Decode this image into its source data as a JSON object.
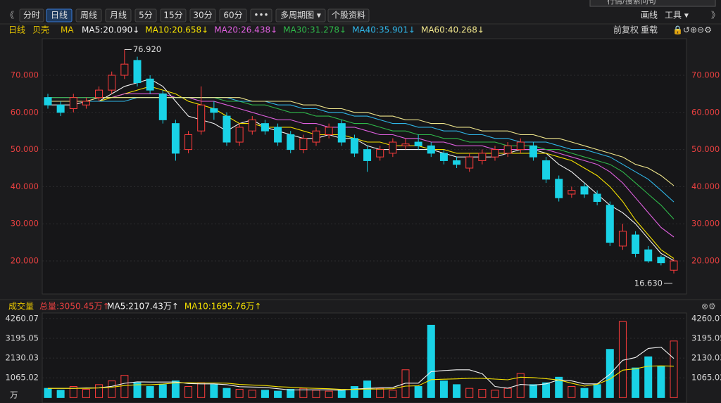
{
  "toolbar": {
    "search": "行情/搜索问句",
    "buttons": [
      "分时",
      "日线",
      "周线",
      "月线",
      "5分",
      "15分",
      "30分",
      "60分",
      "•••",
      "多周期图 ▾",
      "个股资料"
    ],
    "right": [
      "画线",
      "工具 ▾"
    ]
  },
  "chart_data": [
    {
      "type": "candlestick",
      "period": "日线",
      "stock": "贝壳",
      "indicator": "MA",
      "adjust": "前复权",
      "reload": "重载",
      "up_color": "#ff3c3c",
      "down_color": "#19d2e6",
      "open": [
        64,
        62,
        61,
        62,
        64,
        66,
        70,
        74,
        69,
        65,
        57,
        50,
        55,
        61,
        59,
        52,
        55,
        57,
        56,
        54,
        50,
        52,
        54,
        57,
        53,
        50,
        48,
        49,
        51,
        52,
        51,
        49,
        47,
        45,
        47,
        48,
        49,
        50,
        51,
        47,
        42,
        38,
        40,
        38,
        35,
        24,
        27,
        23,
        21,
        17.5
      ],
      "close": [
        62,
        60,
        64,
        63,
        66,
        70,
        73,
        68,
        66,
        58,
        49,
        54,
        62,
        60,
        52,
        56,
        58,
        55,
        52,
        50,
        53,
        55,
        56,
        52,
        49,
        47,
        50,
        52,
        51.5,
        51,
        49,
        47,
        46,
        48,
        49,
        50,
        51,
        52,
        48,
        42,
        37,
        39,
        38,
        36,
        25,
        28,
        22,
        20,
        19.5,
        20
      ],
      "high": [
        65,
        63,
        65,
        64,
        67,
        71,
        76.92,
        75,
        70,
        66,
        58,
        55,
        67,
        63,
        60,
        57,
        59,
        58,
        57,
        55,
        54,
        56,
        57,
        58,
        54,
        51,
        51,
        53,
        53,
        54,
        52,
        50,
        48,
        49,
        50,
        51,
        52,
        53,
        52,
        48,
        43,
        40,
        41,
        39,
        36,
        30,
        28,
        24,
        21.5,
        20.5
      ],
      "low": [
        61,
        59,
        60,
        61,
        63,
        65,
        69,
        67,
        65,
        57,
        47,
        49,
        54,
        58,
        51,
        51,
        54,
        54,
        51,
        49,
        49,
        51,
        53,
        51,
        48,
        44,
        47,
        48,
        50,
        50,
        48,
        46,
        45,
        44,
        46,
        47,
        48,
        49,
        47,
        41,
        36,
        37,
        37,
        35,
        24,
        23,
        21,
        19.5,
        18.8,
        16.63
      ],
      "ylim": [
        11.1,
        79.85
      ],
      "yticks": [
        {
          "value": 20,
          "label": "20.000"
        },
        {
          "value": 30,
          "label": "30.000"
        },
        {
          "value": 40,
          "label": "40.000"
        },
        {
          "value": 50,
          "label": "50.000"
        },
        {
          "value": 60,
          "label": "60.000"
        },
        {
          "value": 70,
          "label": "70.000"
        }
      ],
      "grid": true,
      "annotations": [
        {
          "value": 76.92,
          "label": "76.920"
        },
        {
          "value": 16.63,
          "label": "16.630"
        }
      ],
      "series": [
        {
          "name": "MA5:20.090↓",
          "color": "#f2f2f2",
          "values": [
            62,
            62,
            62,
            63,
            63,
            65,
            67,
            68,
            69,
            67,
            63,
            59,
            58,
            57,
            55,
            57,
            58,
            56,
            55,
            54,
            53,
            53,
            54,
            53,
            53,
            51,
            50,
            50,
            50,
            50,
            50,
            49,
            48,
            48,
            48,
            48,
            49,
            50,
            50,
            49,
            46,
            44,
            41,
            38,
            35,
            33,
            30,
            26,
            22,
            20.09
          ]
        },
        {
          "name": "MA10:20.658↓",
          "color": "#f5e100",
          "values": [
            63,
            63,
            63,
            63,
            63,
            64,
            65,
            66,
            67,
            66,
            65,
            63,
            62,
            61,
            59,
            57,
            57,
            56,
            56,
            56,
            55,
            54,
            54,
            54,
            53,
            52,
            52,
            51,
            51,
            51,
            50,
            50,
            49,
            49,
            49,
            49,
            49,
            49,
            49,
            49,
            48,
            47,
            45,
            43,
            40,
            36,
            31,
            27,
            23,
            20.658
          ]
        },
        {
          "name": "MA20:26.438↓",
          "color": "#e060e0",
          "values": [
            64,
            64,
            64,
            64,
            64,
            64,
            65,
            65,
            65,
            65,
            64,
            64,
            63,
            63,
            62,
            61,
            60,
            59,
            58,
            58,
            57,
            57,
            56,
            56,
            56,
            55,
            54,
            54,
            53,
            53,
            52,
            52,
            51,
            51,
            51,
            50,
            50,
            50,
            50,
            50,
            49,
            48,
            47,
            46,
            44,
            41,
            37,
            33,
            29,
            26.438
          ]
        },
        {
          "name": "MA30:31.278↓",
          "color": "#2fb84a",
          "values": [
            64,
            64,
            64,
            64,
            64,
            64,
            64,
            64,
            64,
            64,
            64,
            64,
            64,
            64,
            63,
            63,
            62,
            62,
            61,
            60,
            60,
            59,
            59,
            58,
            57,
            57,
            56,
            55,
            55,
            54,
            54,
            53,
            53,
            52,
            52,
            52,
            51,
            51,
            51,
            50,
            50,
            49,
            48,
            47,
            46,
            44,
            41,
            38,
            35,
            31.278
          ]
        },
        {
          "name": "MA40:35.901↓",
          "color": "#2fb6e8",
          "values": [
            63,
            63,
            63,
            63,
            63,
            63,
            63,
            64,
            64,
            64,
            64,
            64,
            64,
            64,
            64,
            63,
            63,
            63,
            62,
            62,
            61,
            61,
            60,
            60,
            59,
            59,
            58,
            57,
            57,
            56,
            56,
            55,
            55,
            54,
            54,
            53,
            53,
            52,
            52,
            52,
            51,
            50,
            50,
            49,
            48,
            46,
            44,
            42,
            39,
            35.901
          ]
        },
        {
          "name": "MA60:40.268↓",
          "color": "#f0e68c",
          "values": [
            63,
            63,
            63,
            63,
            64,
            64,
            64,
            64,
            64,
            64,
            64,
            64,
            64,
            64,
            64,
            64,
            63,
            63,
            63,
            63,
            62,
            62,
            61,
            61,
            60,
            60,
            59,
            59,
            58,
            58,
            57,
            57,
            56,
            56,
            55,
            55,
            55,
            54,
            54,
            53,
            53,
            52,
            51,
            50,
            49,
            48,
            46,
            45,
            43,
            40.268
          ]
        }
      ]
    },
    {
      "type": "bar",
      "title": "成交量",
      "total": "总量:3050.45万↑",
      "unit": "万",
      "values": [
        500,
        400,
        600,
        450,
        700,
        900,
        1200,
        800,
        600,
        700,
        900,
        600,
        800,
        700,
        500,
        450,
        400,
        400,
        350,
        450,
        500,
        400,
        350,
        400,
        600,
        900,
        500,
        400,
        1500,
        600,
        3900,
        900,
        700,
        500,
        450,
        400,
        500,
        1300,
        700,
        800,
        1100,
        600,
        500,
        700,
        2600,
        4100,
        1600,
        2200,
        1700,
        3050.45
      ],
      "ylim": [
        -100,
        4560
      ],
      "yticks": [
        1065.02,
        2130.03,
        3195.05,
        4260.07
      ],
      "series": [
        {
          "name": "MA5:2107.43万↑",
          "color": "#f2f2f2",
          "values": [
            500,
            500,
            500,
            520,
            530,
            610,
            770,
            850,
            840,
            840,
            840,
            760,
            740,
            740,
            700,
            590,
            570,
            550,
            480,
            410,
            420,
            420,
            420,
            400,
            460,
            500,
            530,
            550,
            780,
            780,
            1400,
            1460,
            1500,
            1500,
            1290,
            600,
            510,
            710,
            670,
            740,
            960,
            900,
            740,
            740,
            1260,
            2010,
            2160,
            2650,
            2720,
            2107.43
          ]
        },
        {
          "name": "MA10:1695.76万↑",
          "color": "#f5e100",
          "values": [
            500,
            500,
            500,
            500,
            520,
            560,
            650,
            690,
            690,
            730,
            790,
            800,
            790,
            790,
            780,
            710,
            680,
            650,
            590,
            560,
            520,
            500,
            480,
            440,
            440,
            460,
            460,
            480,
            620,
            640,
            970,
            990,
            1010,
            1040,
            1040,
            1000,
            960,
            1100,
            1080,
            1020,
            950,
            780,
            620,
            720,
            1000,
            1480,
            1550,
            1700,
            1710,
            1695.76
          ]
        }
      ]
    }
  ]
}
